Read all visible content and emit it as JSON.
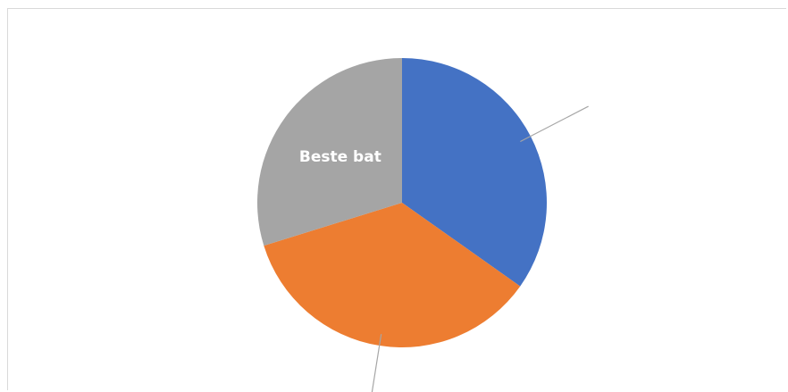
{
  "chart_data": {
    "type": "pie",
    "title": "",
    "slices": [
      {
        "label": "",
        "value": 34.8,
        "color": "#4472C4"
      },
      {
        "label": "",
        "value": 35.4,
        "color": "#ED7D31"
      },
      {
        "label": "Beste bat",
        "value": 29.8,
        "color": "#A5A5A5"
      }
    ],
    "legend": "none"
  }
}
